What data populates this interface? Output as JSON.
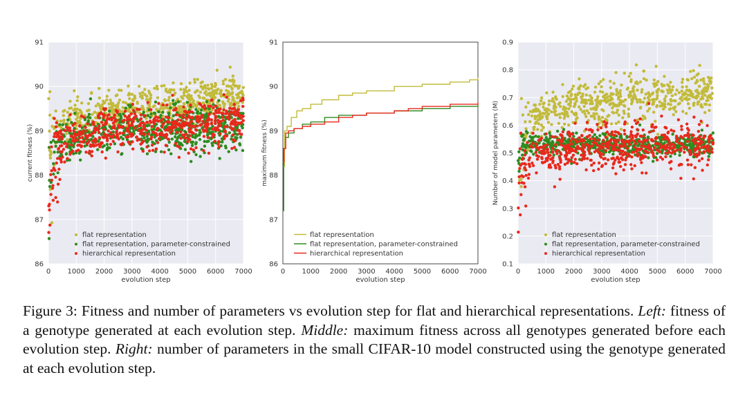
{
  "chart_data": [
    {
      "type": "scatter",
      "xlabel": "evolution step",
      "ylabel": "current fitness (%)",
      "xlim": [
        0,
        7000
      ],
      "ylim": [
        86,
        91
      ],
      "xticks": [
        "0",
        "1000",
        "2000",
        "3000",
        "4000",
        "5000",
        "6000",
        "7000"
      ],
      "yticks": [
        "86",
        "87",
        "88",
        "89",
        "90",
        "91"
      ],
      "grid": true,
      "legend_position": "lower-left",
      "series": [
        {
          "name": "flat representation",
          "color": "#c2bb3a",
          "trend": {
            "x": [
              0,
              50,
              200,
              500,
              1000,
              2000,
              3000,
              4000,
              5000,
              6000,
              7000
            ],
            "y": [
              87.8,
              88.6,
              88.9,
              89.1,
              89.25,
              89.4,
              89.5,
              89.6,
              89.65,
              89.75,
              89.85
            ]
          },
          "spread": 0.22
        },
        {
          "name": "flat representation, parameter-constrained",
          "color": "#2e8b1e",
          "trend": {
            "x": [
              0,
              50,
              200,
              500,
              1000,
              2000,
              3000,
              4000,
              5000,
              6000,
              7000
            ],
            "y": [
              87.5,
              88.4,
              88.6,
              88.75,
              88.85,
              88.95,
              89.0,
              89.0,
              89.05,
              89.05,
              89.1
            ]
          },
          "spread": 0.26
        },
        {
          "name": "hierarchical representation",
          "color": "#e8291c",
          "trend": {
            "x": [
              0,
              50,
              200,
              500,
              1000,
              2000,
              3000,
              4000,
              5000,
              6000,
              7000
            ],
            "y": [
              86.6,
              87.7,
              88.4,
              88.7,
              88.85,
              89.0,
              89.05,
              89.1,
              89.15,
              89.15,
              89.2
            ]
          },
          "spread": 0.25
        }
      ]
    },
    {
      "type": "line",
      "xlabel": "evolution step",
      "ylabel": "maximum fitness (%)",
      "xlim": [
        0,
        7000
      ],
      "ylim": [
        86,
        91
      ],
      "xticks": [
        "0",
        "1000",
        "2000",
        "3000",
        "4000",
        "5000",
        "6000",
        "7000"
      ],
      "yticks": [
        "86",
        "87",
        "88",
        "89",
        "90",
        "91"
      ],
      "grid": false,
      "legend_position": "lower-center",
      "series": [
        {
          "name": "flat representation",
          "color": "#c2bb3a",
          "x": [
            0,
            60,
            150,
            300,
            500,
            700,
            1000,
            1400,
            2000,
            2500,
            3000,
            4000,
            5000,
            6000,
            6700,
            7000
          ],
          "y": [
            88.2,
            89.0,
            89.1,
            89.3,
            89.45,
            89.5,
            89.6,
            89.7,
            89.8,
            89.85,
            89.9,
            90.0,
            90.05,
            90.1,
            90.15,
            90.2
          ]
        },
        {
          "name": "flat representation, parameter-constrained",
          "color": "#2e8b1e",
          "x": [
            0,
            30,
            100,
            200,
            400,
            700,
            1000,
            1500,
            2000,
            3000,
            4000,
            5000,
            6000,
            7000
          ],
          "y": [
            87.2,
            88.6,
            88.85,
            88.95,
            89.05,
            89.15,
            89.2,
            89.3,
            89.35,
            89.4,
            89.45,
            89.5,
            89.55,
            89.6
          ]
        },
        {
          "name": "hierarchical representation",
          "color": "#e8291c",
          "x": [
            0,
            40,
            100,
            200,
            400,
            700,
            1000,
            1500,
            2000,
            2500,
            3000,
            4000,
            4500,
            5000,
            6000,
            7000
          ],
          "y": [
            88.3,
            88.6,
            88.95,
            89.0,
            89.05,
            89.1,
            89.15,
            89.2,
            89.3,
            89.35,
            89.4,
            89.45,
            89.5,
            89.55,
            89.6,
            89.65
          ]
        }
      ]
    },
    {
      "type": "scatter",
      "xlabel": "evolution step",
      "ylabel": "Number of model parameters (M)",
      "xlim": [
        0,
        7000
      ],
      "ylim": [
        0.1,
        0.9
      ],
      "xticks": [
        "0",
        "1000",
        "2000",
        "3000",
        "4000",
        "5000",
        "6000",
        "7000"
      ],
      "yticks": [
        "0.1",
        "0.2",
        "0.3",
        "0.4",
        "0.5",
        "0.6",
        "0.7",
        "0.8",
        "0.9"
      ],
      "grid": true,
      "legend_position": "lower-left",
      "series": [
        {
          "name": "flat representation",
          "color": "#c2bb3a",
          "trend": {
            "x": [
              0,
              100,
              500,
              1000,
              2000,
              3000,
              4000,
              5000,
              6000,
              7000
            ],
            "y": [
              0.5,
              0.56,
              0.62,
              0.65,
              0.67,
              0.68,
              0.69,
              0.7,
              0.71,
              0.72
            ]
          },
          "spread": 0.04
        },
        {
          "name": "flat representation, parameter-constrained",
          "color": "#2e8b1e",
          "trend": {
            "x": [
              0,
              100,
              500,
              1000,
              2000,
              3000,
              4000,
              5000,
              6000,
              7000
            ],
            "y": [
              0.5,
              0.52,
              0.53,
              0.53,
              0.53,
              0.53,
              0.53,
              0.53,
              0.53,
              0.53
            ]
          },
          "spread": 0.02
        },
        {
          "name": "hierarchical representation",
          "color": "#e8291c",
          "trend": {
            "x": [
              0,
              100,
              300,
              500,
              1000,
              2000,
              3000,
              4000,
              5000,
              6000,
              7000
            ],
            "y": [
              0.35,
              0.42,
              0.46,
              0.48,
              0.5,
              0.51,
              0.52,
              0.52,
              0.53,
              0.53,
              0.53
            ]
          },
          "spread": 0.04
        }
      ]
    }
  ],
  "caption": {
    "label": "Figure 3:",
    "text": "Fitness and number of parameters vs evolution step for flat and hierarchical representations.",
    "left_label": "Left:",
    "left_text": "fitness of a genotype generated at each evolution step.",
    "middle_label": "Middle:",
    "middle_text": "maximum fitness across all genotypes generated before each evolution step.",
    "right_label": "Right:",
    "right_text": "number of parameters in the small CIFAR-10 model constructed using the genotype generated at each evolution step."
  }
}
